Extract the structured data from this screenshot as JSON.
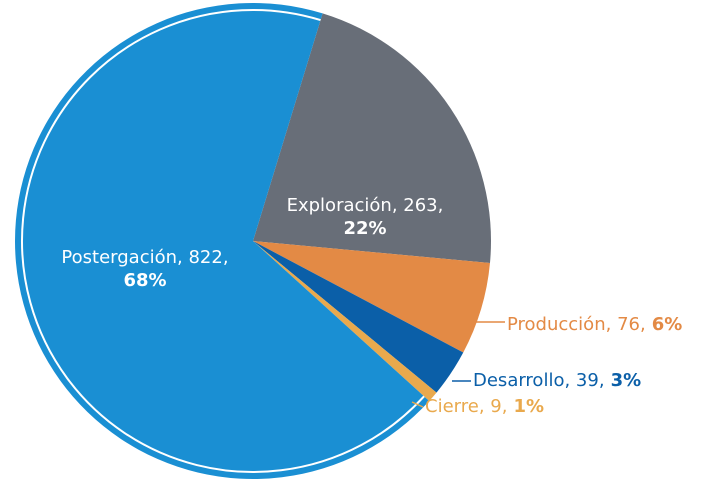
{
  "chart_data": {
    "type": "pie",
    "categories": [
      "Exploración",
      "Producción",
      "Desarrollo",
      "Cierre",
      "Postergación"
    ],
    "values": [
      263,
      76,
      39,
      9,
      822
    ],
    "percents": [
      22,
      6,
      3,
      1,
      68
    ],
    "percent_labels": [
      "22%",
      "6%",
      "3%",
      "1%",
      "68%"
    ],
    "colors": [
      "#686e78",
      "#e38a45",
      "#0b5fa8",
      "#e9a94d",
      "#1a8fd3"
    ]
  }
}
